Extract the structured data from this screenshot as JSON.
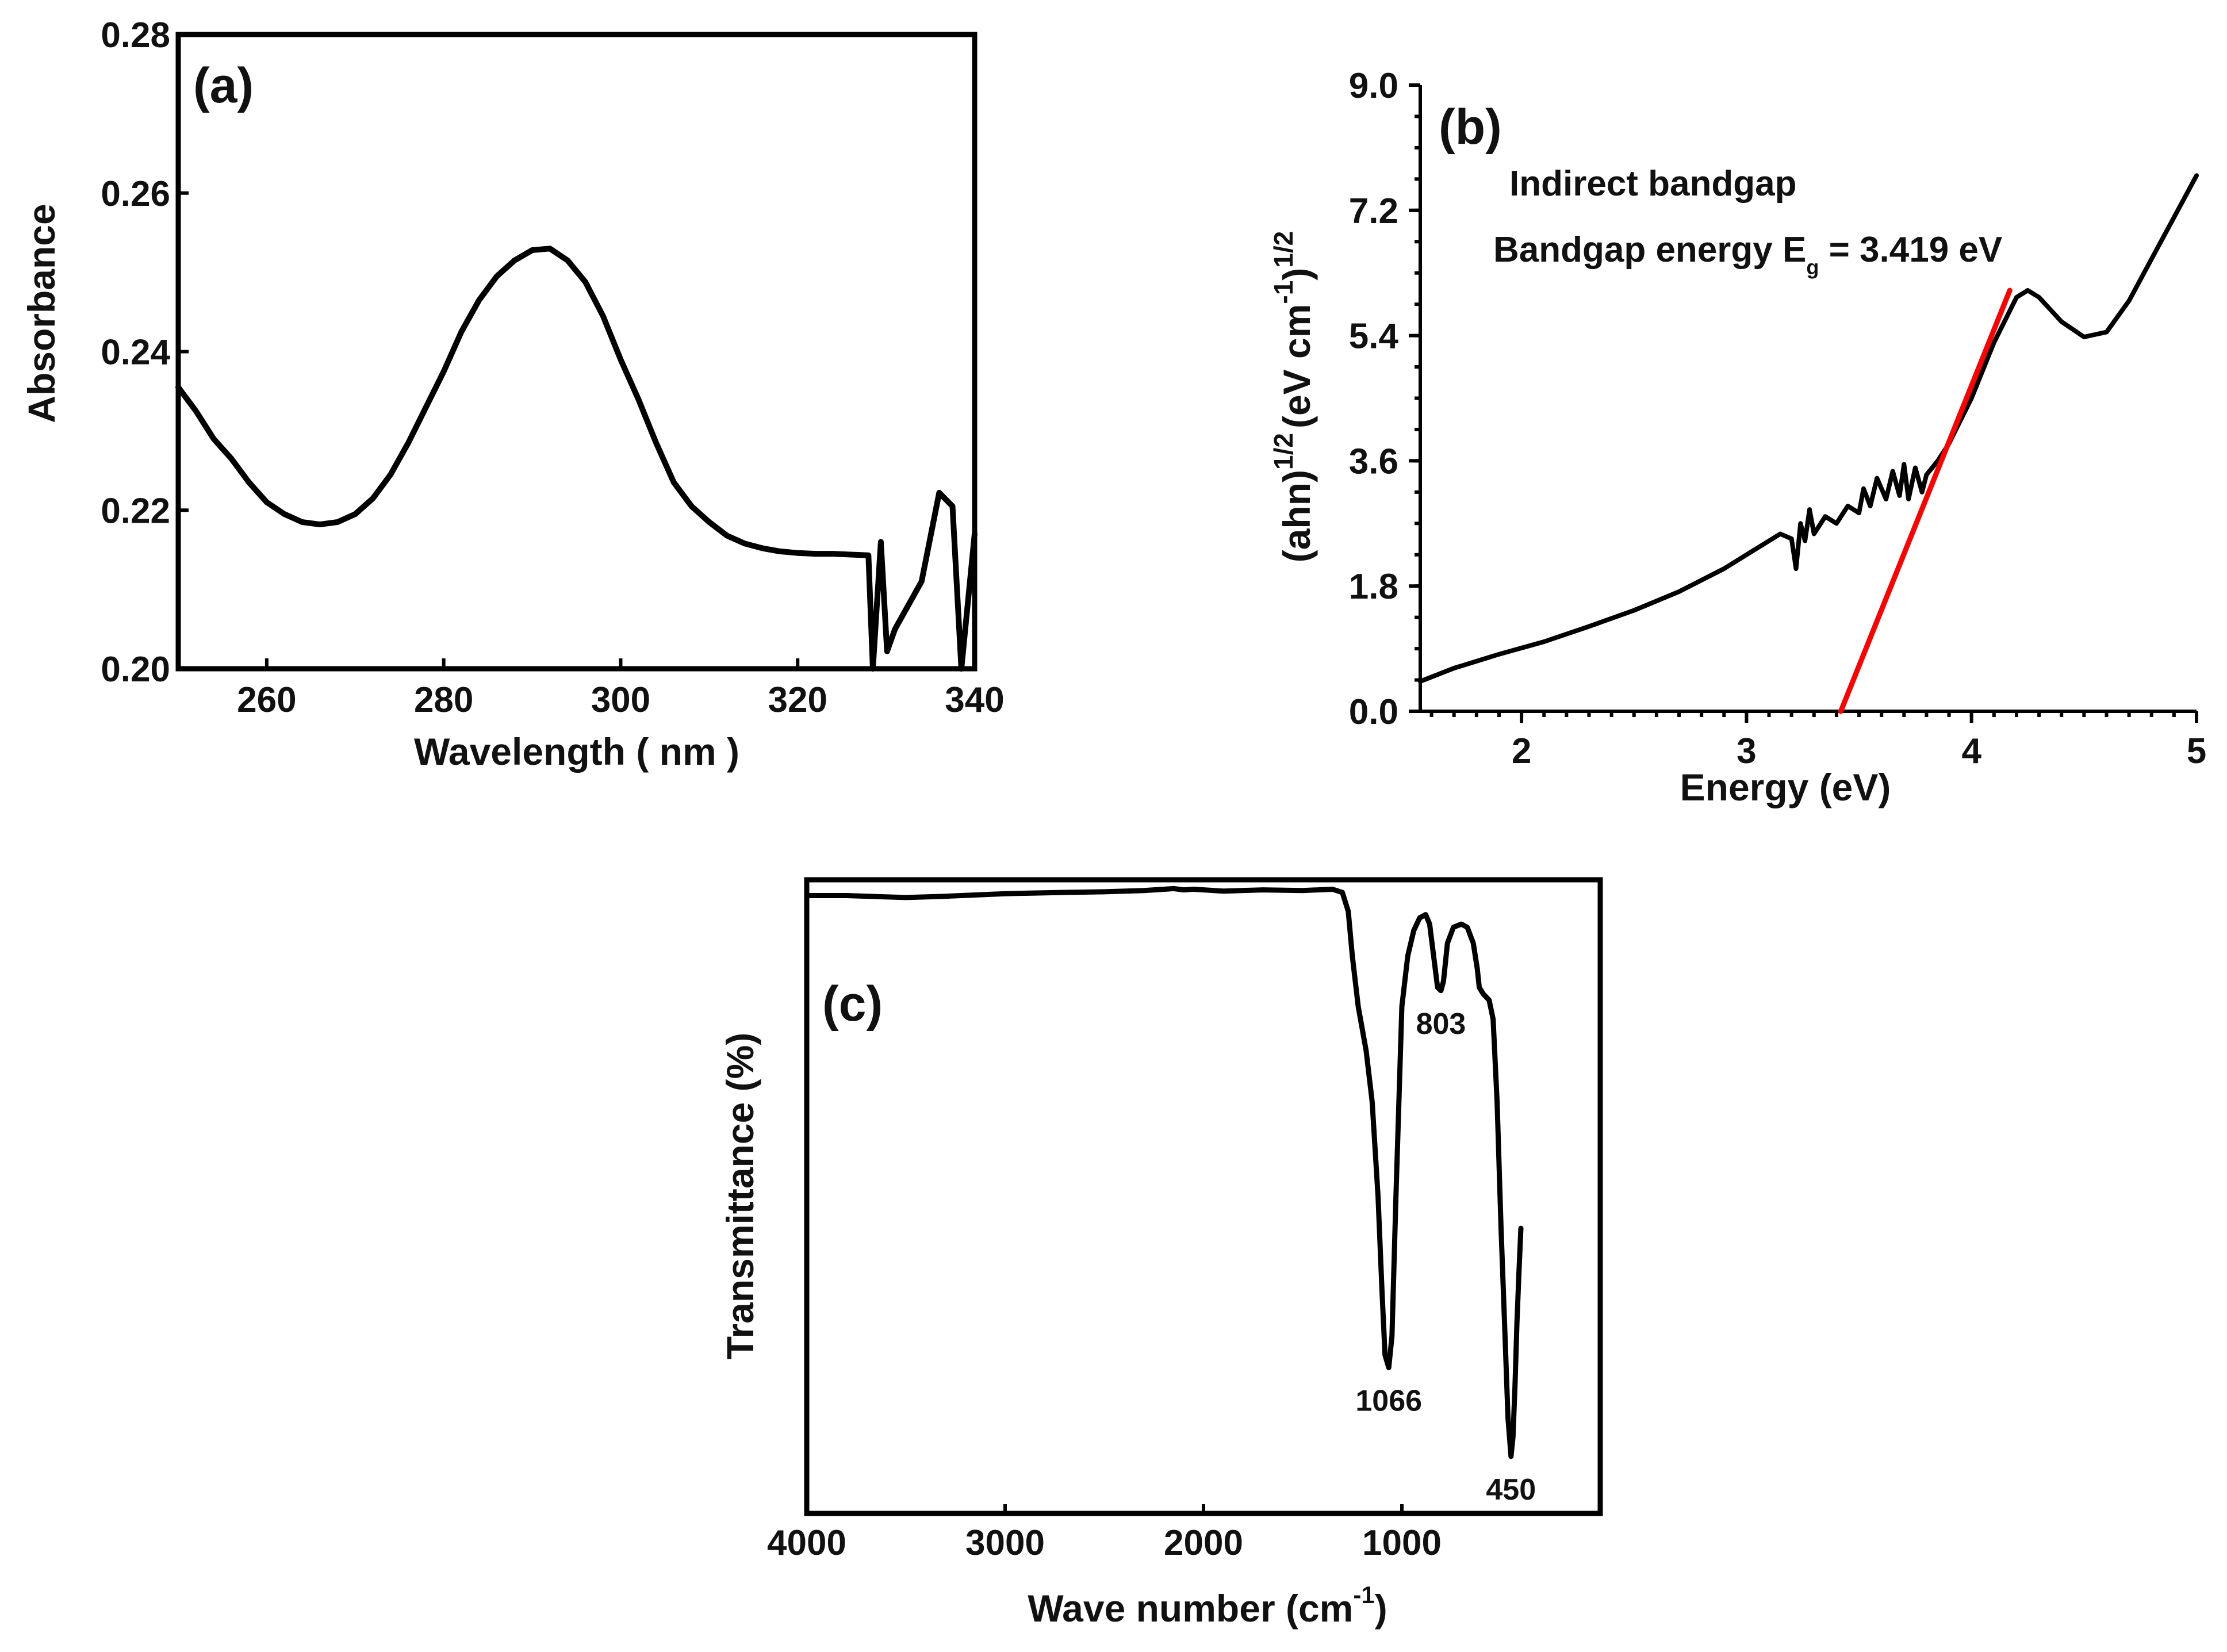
{
  "chart_data": [
    {
      "panel": "(a)",
      "type": "line",
      "xlabel": "Wavelength ( nm )",
      "ylabel": "Absorbance",
      "xlim": [
        250,
        340
      ],
      "ylim": [
        0.2,
        0.28
      ],
      "xticks": [
        260,
        280,
        300,
        320,
        340
      ],
      "xtick_labels": [
        "260",
        "280",
        "300",
        "320",
        "340"
      ],
      "yticks": [
        0.2,
        0.22,
        0.24,
        0.26,
        0.28
      ],
      "ytick_labels": [
        "0.20",
        "0.22",
        "0.24",
        "0.26",
        "0.28"
      ],
      "series": [
        {
          "name": "Absorbance",
          "color": "#000000",
          "x": [
            250,
            252,
            254,
            256,
            258,
            260,
            262,
            264,
            266,
            268,
            270,
            272,
            274,
            276,
            278,
            280,
            282,
            284,
            286,
            288,
            290,
            292,
            294,
            296,
            298,
            300,
            302,
            304,
            306,
            308,
            310,
            312,
            314,
            316,
            318,
            320,
            322,
            324,
            326,
            328,
            328.5,
            329.4,
            330.1,
            331,
            334,
            336,
            337.5,
            338.5,
            340
          ],
          "y": [
            0.2355,
            0.2325,
            0.229,
            0.2265,
            0.2235,
            0.221,
            0.2195,
            0.2185,
            0.2182,
            0.2185,
            0.2195,
            0.2215,
            0.2245,
            0.2285,
            0.233,
            0.2375,
            0.2425,
            0.2465,
            0.2495,
            0.2515,
            0.2528,
            0.253,
            0.2515,
            0.2488,
            0.2445,
            0.239,
            0.234,
            0.2285,
            0.2235,
            0.2205,
            0.2185,
            0.2168,
            0.2158,
            0.2152,
            0.2148,
            0.2146,
            0.2145,
            0.2145,
            0.2144,
            0.2143,
            0.2,
            0.216,
            0.2022,
            0.205,
            0.211,
            0.2222,
            0.2205,
            0.2,
            0.217
          ]
        }
      ]
    },
    {
      "panel": "(b)",
      "type": "line",
      "xlabel": "Energy (eV)",
      "ylabel_base": "(ahn)",
      "ylabel_exp1": "1/2",
      "ylabel_unit": "(eV cm",
      "ylabel_exp2": "-1",
      "ylabel_close": ")",
      "ylabel_exp3": "1/2",
      "xlim": [
        1.55,
        5.0
      ],
      "ylim": [
        0.0,
        9.0
      ],
      "xticks": [
        2,
        3,
        4,
        5
      ],
      "xtick_labels": [
        "2",
        "3",
        "4",
        "5"
      ],
      "yticks": [
        0.0,
        1.8,
        3.6,
        5.4,
        7.2,
        9.0
      ],
      "ytick_labels": [
        "0.0",
        "1.8",
        "3.6",
        "5.4",
        "7.2",
        "9.0"
      ],
      "annotations": {
        "line1": "Indirect bandgap",
        "line2_prefix": "Bandgap energy E",
        "line2_subscript": "g",
        "line2_suffix": " = 3.419 eV"
      },
      "series": [
        {
          "name": "(ahn)^1/2",
          "color": "#000000",
          "x": [
            1.55,
            1.7,
            1.9,
            2.1,
            2.3,
            2.5,
            2.7,
            2.9,
            3.05,
            3.15,
            3.2,
            3.22,
            3.24,
            3.26,
            3.28,
            3.3,
            3.35,
            3.4,
            3.45,
            3.5,
            3.52,
            3.55,
            3.58,
            3.62,
            3.65,
            3.68,
            3.7,
            3.72,
            3.75,
            3.78,
            3.8,
            3.85,
            3.9,
            4.0,
            4.1,
            4.2,
            4.25,
            4.3,
            4.4,
            4.5,
            4.6,
            4.7,
            4.8,
            4.9,
            5.0
          ],
          "y": [
            0.43,
            0.62,
            0.82,
            1.0,
            1.22,
            1.45,
            1.72,
            2.05,
            2.35,
            2.55,
            2.48,
            2.05,
            2.7,
            2.45,
            2.9,
            2.55,
            2.8,
            2.7,
            2.95,
            2.85,
            3.2,
            2.95,
            3.35,
            3.05,
            3.45,
            3.1,
            3.55,
            3.05,
            3.5,
            3.15,
            3.4,
            3.6,
            3.85,
            4.5,
            5.3,
            5.95,
            6.05,
            5.95,
            5.6,
            5.38,
            5.45,
            5.9,
            6.5,
            7.1,
            7.7
          ]
        },
        {
          "name": "linear fit",
          "color": "#ff0000",
          "x": [
            3.419,
            4.17
          ],
          "y": [
            0.0,
            6.05
          ]
        }
      ]
    },
    {
      "panel": "(c)",
      "type": "line",
      "xlabel_base": "Wave number (cm",
      "xlabel_exp": "-1",
      "xlabel_close": ")",
      "ylabel": "Transmittance (%)",
      "xlim": [
        4000,
        0
      ],
      "ylim": [
        0,
        100
      ],
      "xticks": [
        4000,
        3000,
        2000,
        1000
      ],
      "xtick_labels": [
        "4000",
        "3000",
        "2000",
        "1000"
      ],
      "peak_labels": [
        {
          "x": 1066,
          "y": 23,
          "text": "1066"
        },
        {
          "x": 803,
          "y": 82.5,
          "text": "803"
        },
        {
          "x": 450,
          "y": 9,
          "text": "450"
        }
      ],
      "series": [
        {
          "name": "FTIR transmittance",
          "color": "#000000",
          "x": [
            4000,
            3800,
            3500,
            3300,
            3000,
            2700,
            2500,
            2300,
            2150,
            2100,
            2050,
            1900,
            1700,
            1500,
            1350,
            1300,
            1270,
            1250,
            1220,
            1180,
            1150,
            1120,
            1100,
            1085,
            1066,
            1050,
            1030,
            1000,
            970,
            940,
            910,
            880,
            860,
            840,
            820,
            803,
            790,
            770,
            740,
            700,
            670,
            640,
            620,
            610,
            590,
            560,
            540,
            520,
            500,
            480,
            465,
            450,
            440,
            430,
            420,
            410,
            400
          ],
          "y": [
            97.5,
            97.5,
            97.2,
            97.4,
            97.8,
            98.0,
            98.1,
            98.3,
            98.6,
            98.4,
            98.5,
            98.2,
            98.4,
            98.3,
            98.5,
            98.0,
            95,
            88,
            80,
            73,
            65,
            50,
            35,
            25,
            23,
            28,
            50,
            80,
            88,
            92,
            94,
            94.5,
            93,
            88,
            83,
            82.5,
            84,
            90,
            92.5,
            93,
            92.5,
            90,
            86,
            83,
            82,
            81,
            78,
            65,
            45,
            28,
            15,
            9,
            12,
            20,
            30,
            38,
            45
          ]
        }
      ]
    }
  ]
}
